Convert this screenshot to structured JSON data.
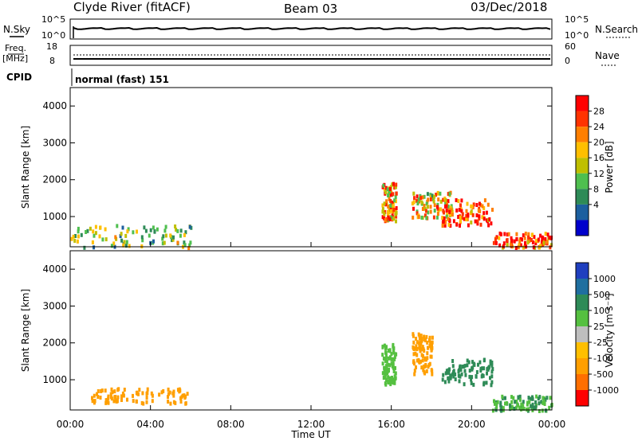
{
  "header": {
    "station": "Clyde River (fitACF)",
    "beam": "Beam 03",
    "date": "03/Dec/2018"
  },
  "top_panels": {
    "nsky_label": "N.Sky",
    "nsky_ticks": [
      "10^5",
      "10^0"
    ],
    "nsearch_label": "N.Search",
    "nsearch_ticks": [
      "10^5",
      "10^0"
    ],
    "freq_label": "Freq.",
    "freq_unit": "[MHz]",
    "freq_ticks": [
      "18",
      "8"
    ],
    "nave_label": "Nave",
    "nave_ticks": [
      "60",
      "0"
    ],
    "cpid_label": "CPID",
    "cpid_text": "normal (fast) 151"
  },
  "time_axis": {
    "label": "Time UT",
    "ticks": [
      "00:00",
      "04:00",
      "08:00",
      "12:00",
      "16:00",
      "20:00",
      "00:00"
    ]
  },
  "power_colorbar": {
    "label": "Power [dB]",
    "ticks": [
      "28",
      "24",
      "20",
      "16",
      "12",
      "8",
      "4"
    ],
    "colors": [
      "#ff0000",
      "#ff3300",
      "#ff7f00",
      "#ffbf00",
      "#bfbf00",
      "#4fbf4f",
      "#2e8b57",
      "#1c5f9f",
      "#0000cc"
    ]
  },
  "velocity_colorbar": {
    "label": "Velocity [m s⁻¹]",
    "ticks": [
      "1000",
      "500",
      "100",
      "25",
      "-25",
      "-100",
      "-500",
      "-1000"
    ],
    "colors": [
      "#1f3fbf",
      "#1f6fa0",
      "#2e8b57",
      "#55c040",
      "#bebebe",
      "#ffbf00",
      "#ff9f00",
      "#ff6f00",
      "#ff0000"
    ]
  },
  "chart_data": [
    {
      "type": "heatmap",
      "title": "",
      "xlabel": "Time UT",
      "ylabel": "Slant Range [km]",
      "x_ticks": [
        "00:00",
        "04:00",
        "08:00",
        "12:00",
        "16:00",
        "20:00",
        "00:00"
      ],
      "y_ticks": [
        1000,
        2000,
        3000,
        4000
      ],
      "ylim": [
        180,
        4500
      ],
      "xlim_hours": [
        0,
        24
      ],
      "colorbar": "Power [dB]",
      "regions": [
        {
          "t0": 0.0,
          "t1": 6.0,
          "r0": 200,
          "r1": 800,
          "value": 14
        },
        {
          "t0": 15.5,
          "t1": 16.2,
          "r0": 900,
          "r1": 2000,
          "value": 22
        },
        {
          "t0": 17.0,
          "t1": 19.0,
          "r0": 1000,
          "r1": 1700,
          "value": 20
        },
        {
          "t0": 18.5,
          "t1": 21.0,
          "r0": 800,
          "r1": 1500,
          "value": 27
        },
        {
          "t0": 21.0,
          "t1": 24.0,
          "r0": 200,
          "r1": 600,
          "value": 28
        }
      ]
    },
    {
      "type": "heatmap",
      "title": "",
      "xlabel": "Time UT",
      "ylabel": "Slant Range [km]",
      "x_ticks": [
        "00:00",
        "04:00",
        "08:00",
        "12:00",
        "16:00",
        "20:00",
        "00:00"
      ],
      "y_ticks": [
        1000,
        2000,
        3000,
        4000
      ],
      "ylim": [
        180,
        4500
      ],
      "xlim_hours": [
        0,
        24
      ],
      "colorbar": "Velocity [m s⁻¹]",
      "regions": [
        {
          "t0": 1.0,
          "t1": 5.8,
          "r0": 400,
          "r1": 800,
          "value": -200
        },
        {
          "t0": 15.5,
          "t1": 16.2,
          "r0": 900,
          "r1": 2000,
          "value": 50
        },
        {
          "t0": 17.0,
          "t1": 18.0,
          "r0": 1200,
          "r1": 2300,
          "value": -300
        },
        {
          "t0": 18.5,
          "t1": 21.0,
          "r0": 900,
          "r1": 1600,
          "value": 300
        },
        {
          "t0": 21.0,
          "t1": 24.0,
          "r0": 200,
          "r1": 600,
          "value": 100
        }
      ]
    }
  ]
}
